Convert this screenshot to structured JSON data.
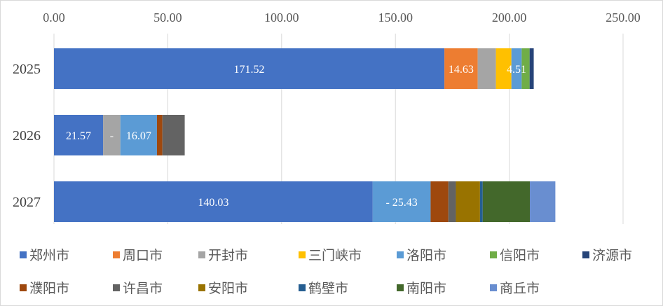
{
  "chart_data": {
    "type": "bar",
    "orientation": "horizontal",
    "stacked": true,
    "categories": [
      "2025",
      "2026",
      "2027"
    ],
    "xlim": [
      0,
      250
    ],
    "xticks": [
      "0.00",
      "50.00",
      "100.00",
      "150.00",
      "200.00",
      "250.00"
    ],
    "xaxis_position": "top",
    "grid": true,
    "legend_position": "bottom",
    "series": [
      {
        "name": "郑州市",
        "color": "#4472c4",
        "values": [
          171.52,
          21.57,
          140.03
        ],
        "labels": [
          "171.52",
          "21.57",
          "140.03"
        ]
      },
      {
        "name": "周口市",
        "color": "#ed7d31",
        "values": [
          14.63,
          0,
          0
        ],
        "labels": [
          "14.63",
          "",
          ""
        ]
      },
      {
        "name": "开封市",
        "color": "#a5a5a5",
        "values": [
          8,
          7.6,
          0
        ],
        "labels": [
          "",
          "-",
          ""
        ]
      },
      {
        "name": "三门峡市",
        "color": "#ffc000",
        "values": [
          6.8,
          0,
          0
        ],
        "labels": [
          "",
          "",
          ""
        ]
      },
      {
        "name": "洛阳市",
        "color": "#5b9bd5",
        "values": [
          4.51,
          16.07,
          25.43
        ],
        "labels": [
          "4.51",
          "16.07",
          "- 25.43"
        ]
      },
      {
        "name": "信阳市",
        "color": "#70ad47",
        "values": [
          3.5,
          0,
          0
        ],
        "labels": [
          "",
          "",
          ""
        ]
      },
      {
        "name": "济源市",
        "color": "#264478",
        "values": [
          1.8,
          0,
          0
        ],
        "labels": [
          "",
          "",
          ""
        ]
      },
      {
        "name": "濮阳市",
        "color": "#9e480e",
        "values": [
          0,
          2.4,
          7.8
        ],
        "labels": [
          "",
          "",
          ""
        ]
      },
      {
        "name": "许昌市",
        "color": "#636363",
        "values": [
          0,
          9.8,
          3.3
        ],
        "labels": [
          "",
          "",
          ""
        ]
      },
      {
        "name": "安阳市",
        "color": "#997300",
        "values": [
          0,
          0,
          10.6
        ],
        "labels": [
          "",
          "",
          ""
        ]
      },
      {
        "name": "鹤壁市",
        "color": "#255e91",
        "values": [
          0,
          0,
          1.2
        ],
        "labels": [
          "",
          "",
          ""
        ]
      },
      {
        "name": "南阳市",
        "color": "#43682b",
        "values": [
          0,
          0,
          20.7
        ],
        "labels": [
          "",
          "",
          ""
        ]
      },
      {
        "name": "商丘市",
        "color": "#698ed0",
        "values": [
          0,
          0,
          11.2
        ],
        "labels": [
          "",
          "",
          ""
        ]
      }
    ]
  }
}
